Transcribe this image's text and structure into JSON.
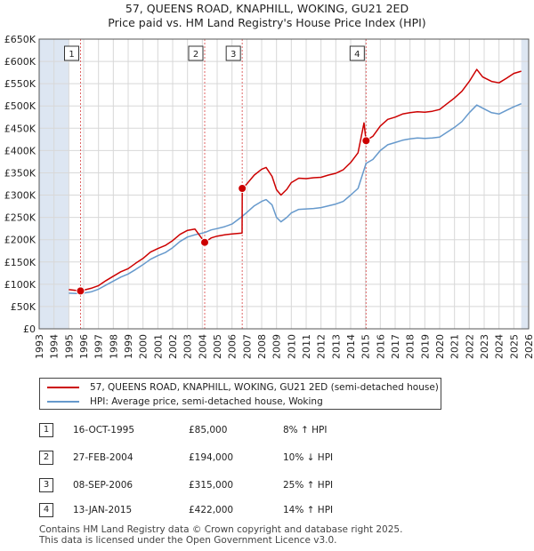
{
  "chart_data": {
    "type": "line",
    "title": "57, QUEENS ROAD, KNAPHILL, WOKING, GU21 2ED",
    "subtitle": "Price paid vs. HM Land Registry's House Price Index (HPI)",
    "xlabel": "",
    "ylabel": "",
    "xlim": [
      1993,
      2026
    ],
    "ylim": [
      0,
      650000
    ],
    "x_ticks": [
      1993,
      1994,
      1995,
      1996,
      1997,
      1998,
      1999,
      2000,
      2001,
      2002,
      2003,
      2004,
      2005,
      2006,
      2007,
      2008,
      2009,
      2010,
      2011,
      2012,
      2013,
      2014,
      2015,
      2016,
      2017,
      2018,
      2019,
      2020,
      2021,
      2022,
      2023,
      2024,
      2025,
      2026
    ],
    "y_ticks": [
      {
        "value": 0,
        "label": "£0"
      },
      {
        "value": 50000,
        "label": "£50K"
      },
      {
        "value": 100000,
        "label": "£100K"
      },
      {
        "value": 150000,
        "label": "£150K"
      },
      {
        "value": 200000,
        "label": "£200K"
      },
      {
        "value": 250000,
        "label": "£250K"
      },
      {
        "value": 300000,
        "label": "£300K"
      },
      {
        "value": 350000,
        "label": "£350K"
      },
      {
        "value": 400000,
        "label": "£400K"
      },
      {
        "value": 450000,
        "label": "£450K"
      },
      {
        "value": 500000,
        "label": "£500K"
      },
      {
        "value": 550000,
        "label": "£550K"
      },
      {
        "value": 600000,
        "label": "£600K"
      },
      {
        "value": 650000,
        "label": "£650K"
      }
    ],
    "data_range": [
      1995.0,
      2025.5
    ],
    "grid": true,
    "legend_position": "below",
    "series": [
      {
        "name": "57, QUEENS ROAD, KNAPHILL, WOKING, GU21 2ED (semi-detached house)",
        "color": "#cc0000",
        "points": [
          [
            1995.0,
            88000
          ],
          [
            1995.79,
            85000
          ],
          [
            1996.5,
            91000
          ],
          [
            1997.0,
            97000
          ],
          [
            1997.5,
            108000
          ],
          [
            1998.0,
            118000
          ],
          [
            1998.5,
            128000
          ],
          [
            1999.0,
            135000
          ],
          [
            1999.5,
            147000
          ],
          [
            2000.0,
            158000
          ],
          [
            2000.5,
            172000
          ],
          [
            2001.0,
            180000
          ],
          [
            2001.5,
            187000
          ],
          [
            2002.0,
            198000
          ],
          [
            2002.5,
            212000
          ],
          [
            2003.0,
            221000
          ],
          [
            2003.5,
            224000
          ],
          [
            2004.16,
            194000
          ],
          [
            2004.6,
            204000
          ],
          [
            2005.0,
            208000
          ],
          [
            2005.5,
            211000
          ],
          [
            2006.0,
            213000
          ],
          [
            2006.68,
            215000
          ],
          [
            2006.69,
            315000
          ],
          [
            2007.0,
            325000
          ],
          [
            2007.5,
            345000
          ],
          [
            2008.0,
            358000
          ],
          [
            2008.3,
            362000
          ],
          [
            2008.7,
            342000
          ],
          [
            2009.0,
            312000
          ],
          [
            2009.3,
            300000
          ],
          [
            2009.7,
            313000
          ],
          [
            2010.0,
            328000
          ],
          [
            2010.5,
            338000
          ],
          [
            2011.0,
            337000
          ],
          [
            2011.5,
            339000
          ],
          [
            2012.0,
            340000
          ],
          [
            2012.5,
            345000
          ],
          [
            2013.0,
            349000
          ],
          [
            2013.5,
            357000
          ],
          [
            2014.0,
            373000
          ],
          [
            2014.5,
            395000
          ],
          [
            2014.9,
            462000
          ],
          [
            2015.04,
            422000
          ],
          [
            2015.5,
            432000
          ],
          [
            2016.0,
            455000
          ],
          [
            2016.5,
            470000
          ],
          [
            2017.0,
            475000
          ],
          [
            2017.5,
            482000
          ],
          [
            2018.0,
            485000
          ],
          [
            2018.5,
            487000
          ],
          [
            2019.0,
            486000
          ],
          [
            2019.5,
            488000
          ],
          [
            2020.0,
            492000
          ],
          [
            2020.5,
            505000
          ],
          [
            2021.0,
            518000
          ],
          [
            2021.5,
            533000
          ],
          [
            2022.0,
            555000
          ],
          [
            2022.5,
            582000
          ],
          [
            2022.9,
            565000
          ],
          [
            2023.5,
            555000
          ],
          [
            2024.0,
            552000
          ],
          [
            2024.5,
            562000
          ],
          [
            2025.0,
            573000
          ],
          [
            2025.5,
            578000
          ]
        ]
      },
      {
        "name": "HPI: Average price, semi-detached house, Woking",
        "color": "#6699cc",
        "points": [
          [
            1995.0,
            80000
          ],
          [
            1995.79,
            79000
          ],
          [
            1996.5,
            83000
          ],
          [
            1997.0,
            89000
          ],
          [
            1997.5,
            98000
          ],
          [
            1998.0,
            107000
          ],
          [
            1998.5,
            116000
          ],
          [
            1999.0,
            123000
          ],
          [
            1999.5,
            133000
          ],
          [
            2000.0,
            144000
          ],
          [
            2000.5,
            156000
          ],
          [
            2001.0,
            164000
          ],
          [
            2001.5,
            171000
          ],
          [
            2002.0,
            182000
          ],
          [
            2002.5,
            196000
          ],
          [
            2003.0,
            206000
          ],
          [
            2003.5,
            211000
          ],
          [
            2004.16,
            216000
          ],
          [
            2004.6,
            222000
          ],
          [
            2005.0,
            225000
          ],
          [
            2005.5,
            229000
          ],
          [
            2006.0,
            235000
          ],
          [
            2006.68,
            252000
          ],
          [
            2007.0,
            261000
          ],
          [
            2007.5,
            276000
          ],
          [
            2008.0,
            286000
          ],
          [
            2008.3,
            290000
          ],
          [
            2008.7,
            278000
          ],
          [
            2009.0,
            250000
          ],
          [
            2009.3,
            240000
          ],
          [
            2009.7,
            250000
          ],
          [
            2010.0,
            260000
          ],
          [
            2010.5,
            268000
          ],
          [
            2011.0,
            269000
          ],
          [
            2011.5,
            270000
          ],
          [
            2012.0,
            272000
          ],
          [
            2012.5,
            276000
          ],
          [
            2013.0,
            280000
          ],
          [
            2013.5,
            286000
          ],
          [
            2014.0,
            300000
          ],
          [
            2014.5,
            315000
          ],
          [
            2015.04,
            371000
          ],
          [
            2015.5,
            380000
          ],
          [
            2016.0,
            400000
          ],
          [
            2016.5,
            413000
          ],
          [
            2017.0,
            418000
          ],
          [
            2017.5,
            423000
          ],
          [
            2018.0,
            426000
          ],
          [
            2018.5,
            428000
          ],
          [
            2019.0,
            427000
          ],
          [
            2019.5,
            428000
          ],
          [
            2020.0,
            430000
          ],
          [
            2020.5,
            441000
          ],
          [
            2021.0,
            452000
          ],
          [
            2021.5,
            465000
          ],
          [
            2022.0,
            485000
          ],
          [
            2022.5,
            502000
          ],
          [
            2022.9,
            495000
          ],
          [
            2023.5,
            485000
          ],
          [
            2024.0,
            482000
          ],
          [
            2024.5,
            490000
          ],
          [
            2025.0,
            498000
          ],
          [
            2025.5,
            505000
          ]
        ]
      }
    ],
    "markers": [
      {
        "label": "1",
        "x": 1995.79,
        "y": 85000
      },
      {
        "label": "2",
        "x": 2004.16,
        "y": 194000
      },
      {
        "label": "3",
        "x": 2006.69,
        "y": 315000
      },
      {
        "label": "4",
        "x": 2015.04,
        "y": 422000
      }
    ]
  },
  "legend": {
    "property_label": "57, QUEENS ROAD, KNAPHILL, WOKING, GU21 2ED (semi-detached house)",
    "hpi_label": "HPI: Average price, semi-detached house, Woking"
  },
  "transactions": [
    {
      "num": "1",
      "date": "16-OCT-1995",
      "price": "£85,000",
      "hpi": "8% ↑ HPI"
    },
    {
      "num": "2",
      "date": "27-FEB-2004",
      "price": "£194,000",
      "hpi": "10% ↓ HPI"
    },
    {
      "num": "3",
      "date": "08-SEP-2006",
      "price": "£315,000",
      "hpi": "25% ↑ HPI"
    },
    {
      "num": "4",
      "date": "13-JAN-2015",
      "price": "£422,000",
      "hpi": "14% ↑ HPI"
    }
  ],
  "footer": {
    "line1": "Contains HM Land Registry data © Crown copyright and database right 2025.",
    "line2": "This data is licensed under the Open Government Licence v3.0."
  },
  "colors": {
    "property": "#cc0000",
    "hpi": "#6699cc",
    "shade": "#dde6f2",
    "grid": "#d8d8d8",
    "marker_line": "#e06666"
  }
}
